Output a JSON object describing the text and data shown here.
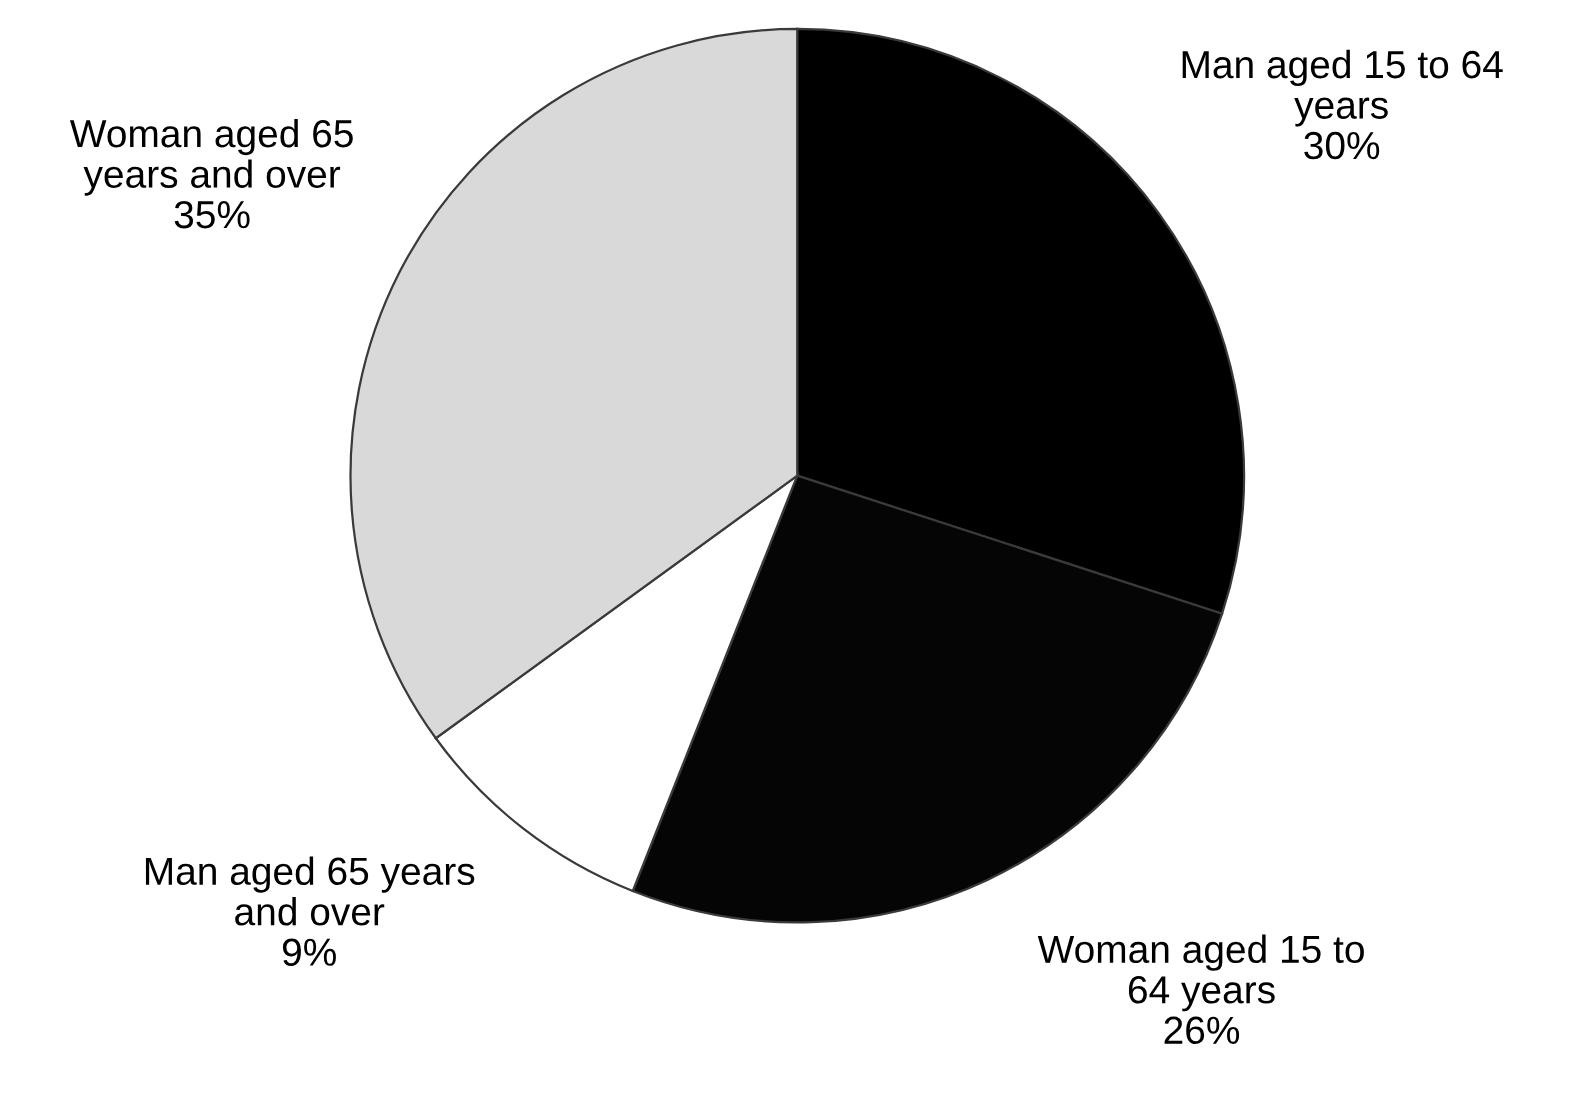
{
  "chart_data": {
    "type": "pie",
    "categories": [
      "Man aged 15 to 64\nyears",
      "Woman aged 15 to\n64 years",
      "Man aged 65 years\nand over",
      "Woman aged 65\nyears and over"
    ],
    "values": [
      30,
      26,
      9,
      35
    ],
    "colors": [
      "#000000",
      "#050505",
      "#ffffff",
      "#d9d9d9"
    ],
    "value_labels": [
      "30%",
      "26%",
      "9%",
      "35%"
    ],
    "legend": false
  }
}
